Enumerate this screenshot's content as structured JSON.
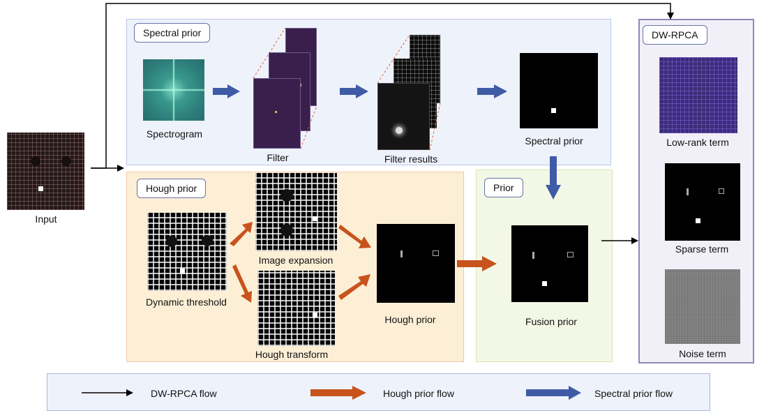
{
  "panels": {
    "spectral": {
      "tag": "Spectral prior"
    },
    "hough": {
      "tag": "Hough prior"
    },
    "prior": {
      "tag": "Prior"
    },
    "dwrpca": {
      "tag": "DW-RPCA"
    }
  },
  "captions": {
    "input": "Input",
    "spectrogram": "Spectrogram",
    "filter": "Filter",
    "filter_results": "Filter results",
    "spectral_prior": "Spectral prior",
    "dynamic_threshold": "Dynamic threshold",
    "image_expansion": "Image expansion",
    "hough_transform": "Hough transform",
    "hough_prior": "Hough prior",
    "fusion_prior": "Fusion prior",
    "low_rank_term": "Low-rank term",
    "sparse_term": "Sparse term",
    "noise_term": "Noise term"
  },
  "legend": {
    "items": [
      {
        "label": "DW-RPCA flow",
        "color": "#000000"
      },
      {
        "label": "Hough prior flow",
        "color": "#c8531d"
      },
      {
        "label": "Spectral prior flow",
        "color": "#3f5ba6"
      }
    ]
  },
  "colors": {
    "spectral_panel_bg": "#eef2fb",
    "spectral_panel_border": "#b9c6e6",
    "hough_panel_bg": "#fcefd6",
    "hough_panel_border": "#f2c9a8",
    "prior_panel_bg": "#f3f8e6",
    "prior_panel_border": "#d8e6b5",
    "dwrpca_panel_bg": "#f1f0f8",
    "dwrpca_panel_border": "#8b88b8",
    "legend_bg": "#eef2fb",
    "legend_border": "#a9b7dc"
  }
}
